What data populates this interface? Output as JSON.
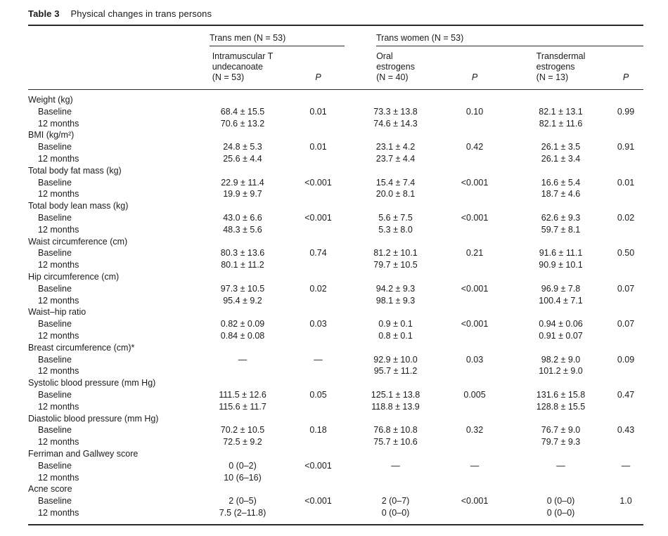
{
  "caption": {
    "label": "Table 3",
    "title": "Physical changes in trans persons"
  },
  "header": {
    "groups": [
      {
        "label": "Trans men (N = 53)"
      },
      {
        "label": "Trans women (N = 53)"
      }
    ],
    "columns": [
      {
        "label": "Intramuscular T\nundecanoate\n(N = 53)"
      },
      {
        "label": "P"
      },
      {
        "label": "Oral\nestrogens\n(N = 40)"
      },
      {
        "label": "P"
      },
      {
        "label": "Transdermal\nestrogens\n(N = 13)"
      },
      {
        "label": "P"
      }
    ]
  },
  "sections": [
    {
      "label": "Weight (kg)",
      "rows": [
        {
          "label": "Baseline",
          "values": [
            "68.4 ± 15.5",
            "0.01",
            "73.3 ± 13.8",
            "0.10",
            "82.1 ± 13.1",
            "0.99"
          ]
        },
        {
          "label": "12 months",
          "values": [
            "70.6 ± 13.2",
            "",
            "74.6 ± 14.3",
            "",
            "82.1 ± 11.6",
            ""
          ]
        }
      ]
    },
    {
      "label": "BMI (kg/m²)",
      "rows": [
        {
          "label": "Baseline",
          "values": [
            "24.8 ± 5.3",
            "0.01",
            "23.1 ± 4.2",
            "0.42",
            "26.1 ± 3.5",
            "0.91"
          ]
        },
        {
          "label": "12 months",
          "values": [
            "25.6 ± 4.4",
            "",
            "23.7 ± 4.4",
            "",
            "26.1 ± 3.4",
            ""
          ]
        }
      ]
    },
    {
      "label": "Total body fat mass (kg)",
      "rows": [
        {
          "label": "Baseline",
          "values": [
            "22.9 ± 11.4",
            "<0.001",
            "15.4 ± 7.4",
            "<0.001",
            "16.6 ± 5.4",
            "0.01"
          ]
        },
        {
          "label": "12 months",
          "values": [
            "19.9 ± 9.7",
            "",
            "20.0 ± 8.1",
            "",
            "18.7 ± 4.6",
            ""
          ]
        }
      ]
    },
    {
      "label": "Total body lean mass (kg)",
      "rows": [
        {
          "label": "Baseline",
          "values": [
            "43.0 ± 6.6",
            "<0.001",
            "5.6 ± 7.5",
            "<0.001",
            "62.6 ± 9.3",
            "0.02"
          ]
        },
        {
          "label": "12 months",
          "values": [
            "48.3 ± 5.6",
            "",
            "5.3 ± 8.0",
            "",
            "59.7 ± 8.1",
            ""
          ]
        }
      ]
    },
    {
      "label": "Waist circumference (cm)",
      "rows": [
        {
          "label": "Baseline",
          "values": [
            "80.3 ± 13.6",
            "0.74",
            "81.2 ± 10.1",
            "0.21",
            "91.6 ± 11.1",
            "0.50"
          ]
        },
        {
          "label": "12 months",
          "values": [
            "80.1 ± 11.2",
            "",
            "79.7 ± 10.5",
            "",
            "90.9 ± 10.1",
            ""
          ]
        }
      ]
    },
    {
      "label": "Hip circumference (cm)",
      "rows": [
        {
          "label": "Baseline",
          "values": [
            "97.3 ± 10.5",
            "0.02",
            "94.2 ± 9.3",
            "<0.001",
            "96.9 ± 7.8",
            "0.07"
          ]
        },
        {
          "label": "12 months",
          "values": [
            "95.4 ± 9.2",
            "",
            "98.1 ± 9.3",
            "",
            "100.4 ± 7.1",
            ""
          ]
        }
      ]
    },
    {
      "label": "Waist–hip ratio",
      "rows": [
        {
          "label": "Baseline",
          "values": [
            "0.82 ± 0.09",
            "0.03",
            "0.9 ± 0.1",
            "<0.001",
            "0.94 ± 0.06",
            "0.07"
          ]
        },
        {
          "label": "12 months",
          "values": [
            "0.84 ± 0.08",
            "",
            "0.8 ± 0.1",
            "",
            "0.91 ± 0.07",
            ""
          ]
        }
      ]
    },
    {
      "label": "Breast circumference (cm)*",
      "rows": [
        {
          "label": "Baseline",
          "values": [
            "—",
            "—",
            "92.9 ± 10.0",
            "0.03",
            "98.2 ± 9.0",
            "0.09"
          ]
        },
        {
          "label": "12 months",
          "values": [
            "",
            "",
            "95.7 ± 11.2",
            "",
            "101.2 ± 9.0",
            ""
          ]
        }
      ]
    },
    {
      "label": "Systolic blood pressure (mm Hg)",
      "rows": [
        {
          "label": "Baseline",
          "values": [
            "111.5 ± 12.6",
            "0.05",
            "125.1 ± 13.8",
            "0.005",
            "131.6 ± 15.8",
            "0.47"
          ]
        },
        {
          "label": "12 months",
          "values": [
            "115.6 ± 11.7",
            "",
            "118.8 ± 13.9",
            "",
            "128.8 ± 15.5",
            ""
          ]
        }
      ]
    },
    {
      "label": "Diastolic blood pressure (mm Hg)",
      "rows": [
        {
          "label": "Baseline",
          "values": [
            "70.2 ± 10.5",
            "0.18",
            "76.8 ± 10.8",
            "0.32",
            "76.7 ± 9.0",
            "0.43"
          ]
        },
        {
          "label": "12 months",
          "values": [
            "72.5 ± 9.2",
            "",
            "75.7 ± 10.6",
            "",
            "79.7 ± 9.3",
            ""
          ]
        }
      ]
    },
    {
      "label": "Ferriman and Gallwey score",
      "rows": [
        {
          "label": "Baseline",
          "values": [
            "0 (0–2)",
            "<0.001",
            "—",
            "—",
            "—",
            "—"
          ]
        },
        {
          "label": "12 months",
          "values": [
            "10 (6–16)",
            "",
            "",
            "",
            "",
            ""
          ]
        }
      ]
    },
    {
      "label": "Acne score",
      "rows": [
        {
          "label": "Baseline",
          "values": [
            "2 (0–5)",
            "<0.001",
            "2 (0–7)",
            "<0.001",
            "0 (0–0)",
            "1.0"
          ]
        },
        {
          "label": "12 months",
          "values": [
            "7.5 (2–11.8)",
            "",
            "0 (0–0)",
            "",
            "0 (0–0)",
            ""
          ]
        }
      ]
    }
  ]
}
